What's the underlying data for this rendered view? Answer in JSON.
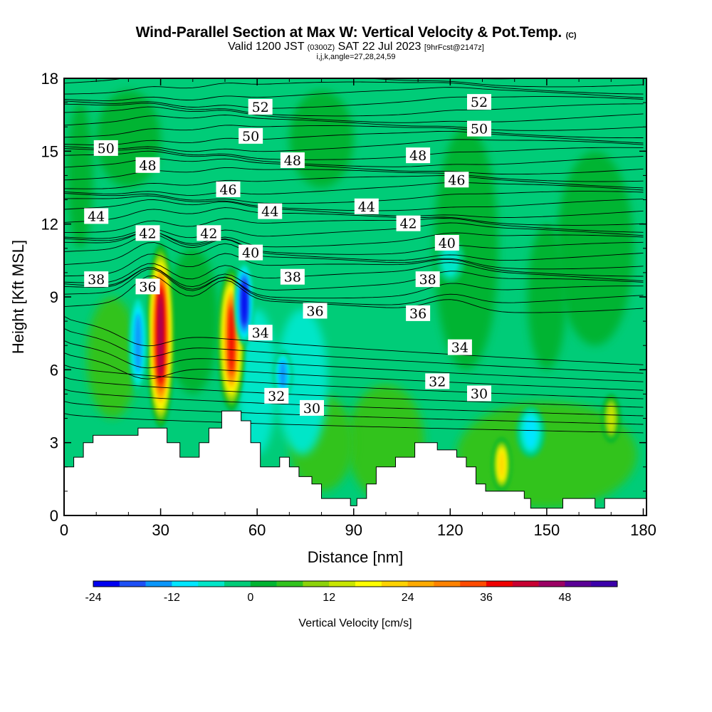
{
  "header": {
    "title": "Wind-Parallel Section at Max W: Vertical Velocity & Pot.Temp.",
    "copyright": "(C)",
    "valid_prefix": "Valid 1200 JST",
    "valid_utc": "(0300Z)",
    "valid_date": "SAT 22 Jul 2023",
    "forecast": "[9hrFcst@2147z]",
    "indices": "i,j,k,angle=27,28,24,59"
  },
  "chart_data": {
    "type": "heatmap",
    "title": "Wind-Parallel Section at Max W: Vertical Velocity & Pot.Temp.",
    "xlabel": "Distance [nm]",
    "ylabel": "Height [Kft MSL]",
    "xlim": [
      0,
      181
    ],
    "ylim": [
      0,
      18
    ],
    "xticks": [
      0,
      30,
      60,
      90,
      120,
      150,
      180
    ],
    "yticks": [
      0,
      3,
      6,
      9,
      12,
      15,
      18
    ],
    "colorbar": {
      "title": "Vertical Velocity [cm/s]",
      "ticks": [
        -24,
        -12,
        0,
        12,
        24,
        36,
        48
      ],
      "range": [
        -24,
        56
      ],
      "step": 4,
      "colors": [
        "#0000f0",
        "#1e50f5",
        "#0a96fa",
        "#00e6ff",
        "#00e6c8",
        "#00cc78",
        "#00b432",
        "#32c31e",
        "#8cd20a",
        "#c8e600",
        "#ffff00",
        "#ffd200",
        "#ffaa00",
        "#ff8200",
        "#ff4b00",
        "#f00000",
        "#c80032",
        "#9b0064",
        "#5a0096",
        "#3c00aa"
      ]
    },
    "terrain": [
      [
        0,
        2.0
      ],
      [
        3,
        2.0
      ],
      [
        3,
        2.4
      ],
      [
        6,
        2.4
      ],
      [
        6,
        3.0
      ],
      [
        9,
        3.0
      ],
      [
        9,
        3.3
      ],
      [
        23,
        3.3
      ],
      [
        23,
        3.6
      ],
      [
        32,
        3.6
      ],
      [
        32,
        3.0
      ],
      [
        36,
        3.0
      ],
      [
        36,
        2.4
      ],
      [
        42,
        2.4
      ],
      [
        42,
        3.0
      ],
      [
        45,
        3.0
      ],
      [
        45,
        3.6
      ],
      [
        49,
        3.6
      ],
      [
        49,
        4.3
      ],
      [
        55,
        4.3
      ],
      [
        55,
        3.9
      ],
      [
        58,
        3.9
      ],
      [
        58,
        3.0
      ],
      [
        61,
        3.0
      ],
      [
        61,
        2.0
      ],
      [
        67,
        2.0
      ],
      [
        67,
        2.4
      ],
      [
        70,
        2.4
      ],
      [
        70,
        2.0
      ],
      [
        73,
        2.0
      ],
      [
        73,
        1.6
      ],
      [
        77,
        1.6
      ],
      [
        77,
        1.3
      ],
      [
        80,
        1.3
      ],
      [
        80,
        0.7
      ],
      [
        89,
        0.7
      ],
      [
        89,
        0.4
      ],
      [
        91,
        0.4
      ],
      [
        91,
        0.7
      ],
      [
        94,
        0.7
      ],
      [
        94,
        1.3
      ],
      [
        97,
        1.3
      ],
      [
        97,
        2.0
      ],
      [
        103,
        2.0
      ],
      [
        103,
        2.4
      ],
      [
        109,
        2.4
      ],
      [
        109,
        3.0
      ],
      [
        116,
        3.0
      ],
      [
        116,
        2.7
      ],
      [
        122,
        2.7
      ],
      [
        122,
        2.4
      ],
      [
        125,
        2.4
      ],
      [
        125,
        2.0
      ],
      [
        128,
        2.0
      ],
      [
        128,
        1.3
      ],
      [
        131,
        1.3
      ],
      [
        131,
        1.0
      ],
      [
        143,
        1.0
      ],
      [
        143,
        0.7
      ],
      [
        145,
        0.7
      ],
      [
        145,
        0.3
      ],
      [
        155,
        0.3
      ],
      [
        155,
        0.7
      ],
      [
        165,
        0.7
      ],
      [
        165,
        0.3
      ],
      [
        168,
        0.3
      ],
      [
        168,
        0.7
      ],
      [
        181,
        0.7
      ]
    ],
    "vertical_velocity_features": [
      {
        "x": 30,
        "ymin": 3.6,
        "ymax": 11.2,
        "peak": 48
      },
      {
        "x": 52,
        "ymin": 4.3,
        "ymax": 10.2,
        "peak": 40
      },
      {
        "x": 56,
        "ymin": 7.0,
        "ymax": 10.5,
        "peak": -24
      },
      {
        "x": 23,
        "ymin": 5.0,
        "ymax": 9.2,
        "peak": -16
      },
      {
        "x": 68,
        "ymin": 4.8,
        "ymax": 6.8,
        "peak": -16
      },
      {
        "x": 120,
        "ymin": 9.6,
        "ymax": 11.4,
        "peak": -6
      },
      {
        "x": 136,
        "ymin": 1.0,
        "ymax": 3.2,
        "peak": 24
      },
      {
        "x": 170,
        "ymin": 3.0,
        "ymax": 5.0,
        "peak": 16
      },
      {
        "x": 145,
        "ymin": 2.4,
        "ymax": 4.5,
        "peak": -12
      }
    ],
    "potential_temperature_labels": [
      {
        "v": "52",
        "x": 61,
        "y": 16.8
      },
      {
        "v": "52",
        "x": 129,
        "y": 17.0
      },
      {
        "v": "50",
        "x": 13,
        "y": 15.1
      },
      {
        "v": "50",
        "x": 58,
        "y": 15.6
      },
      {
        "v": "50",
        "x": 129,
        "y": 15.9
      },
      {
        "v": "48",
        "x": 26,
        "y": 14.4
      },
      {
        "v": "48",
        "x": 71,
        "y": 14.6
      },
      {
        "v": "48",
        "x": 110,
        "y": 14.8
      },
      {
        "v": "46",
        "x": 51,
        "y": 13.4
      },
      {
        "v": "46",
        "x": 122,
        "y": 13.8
      },
      {
        "v": "44",
        "x": 10,
        "y": 12.3
      },
      {
        "v": "44",
        "x": 64,
        "y": 12.5
      },
      {
        "v": "44",
        "x": 94,
        "y": 12.7
      },
      {
        "v": "42",
        "x": 26,
        "y": 11.6
      },
      {
        "v": "42",
        "x": 45,
        "y": 11.6
      },
      {
        "v": "42",
        "x": 107,
        "y": 12.0
      },
      {
        "v": "40",
        "x": 58,
        "y": 10.8
      },
      {
        "v": "40",
        "x": 119,
        "y": 11.2
      },
      {
        "v": "38",
        "x": 10,
        "y": 9.7
      },
      {
        "v": "38",
        "x": 71,
        "y": 9.8
      },
      {
        "v": "38",
        "x": 113,
        "y": 9.7
      },
      {
        "v": "36",
        "x": 26,
        "y": 9.4
      },
      {
        "v": "36",
        "x": 78,
        "y": 8.4
      },
      {
        "v": "36",
        "x": 110,
        "y": 8.3
      },
      {
        "v": "34",
        "x": 61,
        "y": 7.5
      },
      {
        "v": "34",
        "x": 123,
        "y": 6.9
      },
      {
        "v": "32",
        "x": 66,
        "y": 4.9
      },
      {
        "v": "32",
        "x": 116,
        "y": 5.5
      },
      {
        "v": "30",
        "x": 77,
        "y": 4.4
      },
      {
        "v": "30",
        "x": 129,
        "y": 5.0
      }
    ]
  }
}
